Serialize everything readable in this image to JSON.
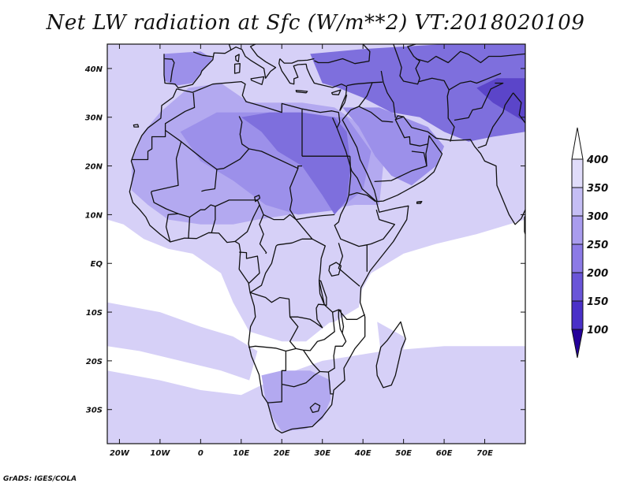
{
  "title": "Net LW radiation at Sfc (W/m**2) VT:2018020109",
  "credit": "GrADS: IGES/COLA",
  "map": {
    "lon_range": [
      -23,
      80
    ],
    "lat_range": [
      -37,
      45
    ],
    "x_ticks": [
      {
        "value": -20,
        "label": "20W"
      },
      {
        "value": -10,
        "label": "10W"
      },
      {
        "value": 0,
        "label": "0"
      },
      {
        "value": 10,
        "label": "10E"
      },
      {
        "value": 20,
        "label": "20E"
      },
      {
        "value": 30,
        "label": "30E"
      },
      {
        "value": 40,
        "label": "40E"
      },
      {
        "value": 50,
        "label": "50E"
      },
      {
        "value": 60,
        "label": "60E"
      },
      {
        "value": 70,
        "label": "70E"
      }
    ],
    "y_ticks": [
      {
        "value": 40,
        "label": "40N"
      },
      {
        "value": 30,
        "label": "30N"
      },
      {
        "value": 20,
        "label": "20N"
      },
      {
        "value": 10,
        "label": "10N"
      },
      {
        "value": 0,
        "label": "EQ"
      },
      {
        "value": -10,
        "label": "10S"
      },
      {
        "value": -20,
        "label": "20S"
      },
      {
        "value": -30,
        "label": "30S"
      }
    ]
  },
  "colorbar": {
    "levels": [
      "100",
      "150",
      "200",
      "250",
      "300",
      "350",
      "400"
    ],
    "colors": [
      "#2a00a8",
      "#4a30c8",
      "#6a55d8",
      "#8c7ae6",
      "#a99cee",
      "#c5bef5",
      "#e0dcfa"
    ],
    "under_color": "#24009a",
    "over_color": "#ffffff"
  },
  "fill_colors": {
    "background": "#ffffff",
    "light": "#d6d0f7",
    "medium": "#b3a9f0",
    "darker": "#9c90ea",
    "dark": "#7e6fdd",
    "darkest": "#5b45c9"
  }
}
